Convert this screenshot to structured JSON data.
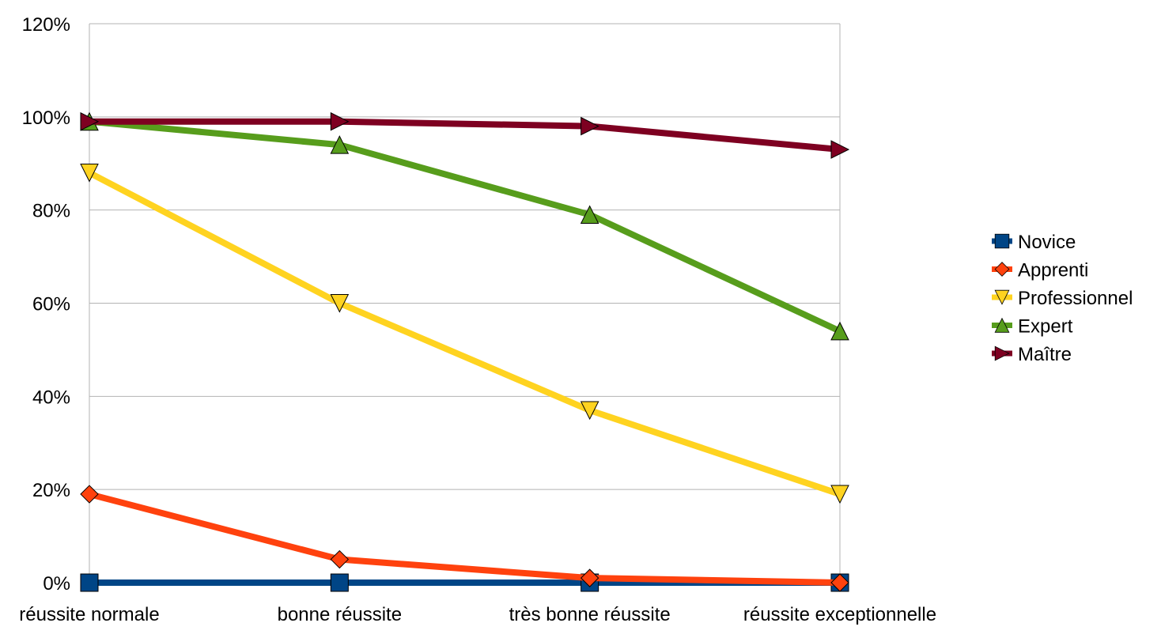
{
  "chart_data": {
    "type": "line",
    "categories": [
      "réussite normale",
      "bonne réussite",
      "très bonne réussite",
      "réussite exceptionnelle"
    ],
    "ylim": [
      0,
      120
    ],
    "yticks": [
      "0%",
      "20%",
      "40%",
      "60%",
      "80%",
      "100%",
      "120%"
    ],
    "ytick_values": [
      0,
      20,
      40,
      60,
      80,
      100,
      120
    ],
    "grid": true,
    "legend_position": "right",
    "series": [
      {
        "name": "Novice",
        "values": [
          0,
          0,
          0,
          0
        ],
        "color": "#004586",
        "marker": "square"
      },
      {
        "name": "Apprenti",
        "values": [
          19,
          5,
          1,
          0
        ],
        "color": "#ff420e",
        "marker": "diamond"
      },
      {
        "name": "Professionnel",
        "values": [
          88,
          60,
          37,
          19
        ],
        "color": "#ffd320",
        "marker": "triangle-down"
      },
      {
        "name": "Expert",
        "values": [
          99,
          94,
          79,
          54
        ],
        "color": "#579d1c",
        "marker": "triangle-up"
      },
      {
        "name": "Maître",
        "values": [
          99,
          99,
          98,
          93
        ],
        "color": "#7e0021",
        "marker": "triangle-right"
      }
    ]
  }
}
